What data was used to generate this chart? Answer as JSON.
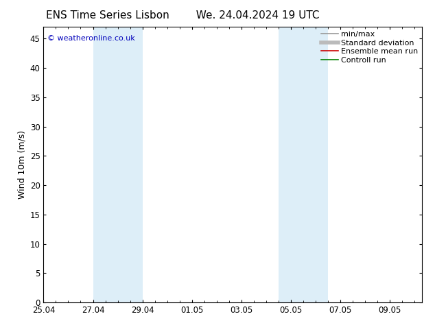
{
  "title": "ENS Time Series Lisbon        We. 24.04.2024 19 UTC",
  "watermark": "© weatheronline.co.uk",
  "ylabel": "Wind 10m (m/s)",
  "ylim": [
    0,
    47
  ],
  "yticks": [
    0,
    5,
    10,
    15,
    20,
    25,
    30,
    35,
    40,
    45
  ],
  "xtick_labels": [
    "25.04",
    "27.04",
    "29.04",
    "01.05",
    "03.05",
    "05.05",
    "07.05",
    "09.05"
  ],
  "xtick_positions": [
    0,
    2,
    4,
    6,
    8,
    10,
    12,
    14
  ],
  "xlim": [
    0,
    15.3
  ],
  "shaded_regions": [
    {
      "x_start": 2,
      "x_end": 4,
      "color": "#ddeef8"
    },
    {
      "x_start": 9.5,
      "x_end": 11.5,
      "color": "#ddeef8"
    }
  ],
  "legend_entries": [
    {
      "label": "min/max",
      "color": "#999999",
      "linestyle": "-",
      "linewidth": 1.2
    },
    {
      "label": "Standard deviation",
      "color": "#bbbbbb",
      "linestyle": "-",
      "linewidth": 4
    },
    {
      "label": "Ensemble mean run",
      "color": "#cc0000",
      "linestyle": "-",
      "linewidth": 1.2
    },
    {
      "label": "Controll run",
      "color": "#008000",
      "linestyle": "-",
      "linewidth": 1.2
    }
  ],
  "bg_color": "#ffffff",
  "plot_bg_color": "#ffffff",
  "watermark_color": "#0000bb",
  "title_fontsize": 11,
  "tick_fontsize": 8.5,
  "ylabel_fontsize": 9,
  "legend_fontsize": 8,
  "watermark_fontsize": 8
}
